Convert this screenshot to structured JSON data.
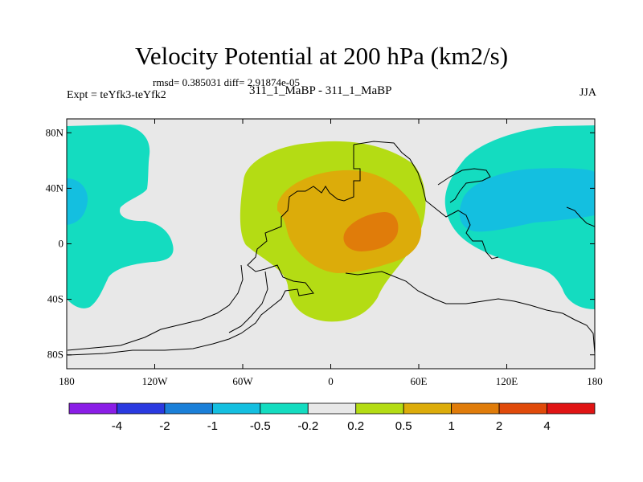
{
  "header": {
    "title": "Velocity Potential at 200 hPa (km2/s)",
    "stats": "rmsd= 0.385031 diff= 2.91874e-05",
    "expt": "Expt = teYfk3-teYfk2",
    "subtitle": "311_1_MaBP - 311_1_MaBP",
    "season": "JJA"
  },
  "chart_data": {
    "type": "heatmap",
    "title": "Velocity Potential at 200 hPa (km2/s)",
    "xlabel": "",
    "ylabel": "",
    "x_range": [
      -180,
      180
    ],
    "y_range": [
      -90,
      90
    ],
    "x_ticks": [
      {
        "value": -180,
        "label": "180"
      },
      {
        "value": -120,
        "label": "120W"
      },
      {
        "value": -60,
        "label": "60W"
      },
      {
        "value": 0,
        "label": "0"
      },
      {
        "value": 60,
        "label": "60E"
      },
      {
        "value": 120,
        "label": "120E"
      },
      {
        "value": 180,
        "label": "180"
      }
    ],
    "y_ticks": [
      {
        "value": 80,
        "label": "80N"
      },
      {
        "value": 40,
        "label": "40N"
      },
      {
        "value": 0,
        "label": "0"
      },
      {
        "value": -40,
        "label": "40S"
      },
      {
        "value": -80,
        "label": "80S"
      }
    ],
    "contour_levels": [
      -4,
      -2,
      -1,
      -0.5,
      -0.2,
      0.2,
      0.5,
      1,
      2,
      4
    ],
    "colorbar_labels": [
      "-4",
      "-2",
      "-1",
      "-0.5",
      "-0.2",
      "0.2",
      "0.5",
      "1",
      "2",
      "4"
    ],
    "colorbar_colors": [
      "#8a1ee6",
      "#2a3ae0",
      "#1a7fd8",
      "#14bfe0",
      "#14dcc0",
      "#e8e8e8",
      "#b4dc14",
      "#dcac0a",
      "#e07c0a",
      "#e04a0a",
      "#e01414"
    ],
    "regions": [
      {
        "name": "positive-0.2-0.5",
        "level": 0.2,
        "color": "#b4dc14",
        "center": [
          20,
          10
        ]
      },
      {
        "name": "positive-0.5-1",
        "level": 0.5,
        "color": "#dcac0a",
        "center": [
          30,
          5
        ]
      },
      {
        "name": "positive-1-2",
        "level": 1,
        "color": "#e07c0a",
        "center": [
          35,
          5
        ]
      },
      {
        "name": "negative-east",
        "level": -0.2,
        "color": "#14dcc0",
        "center": [
          150,
          20
        ]
      },
      {
        "name": "negative-east-core",
        "level": -0.5,
        "color": "#14bfe0",
        "center": [
          140,
          25
        ]
      },
      {
        "name": "negative-west",
        "level": -0.2,
        "color": "#14dcc0",
        "center": [
          -160,
          20
        ]
      },
      {
        "name": "negative-west-core",
        "level": -0.5,
        "color": "#14bfe0",
        "center": [
          -176,
          30
        ]
      }
    ]
  }
}
